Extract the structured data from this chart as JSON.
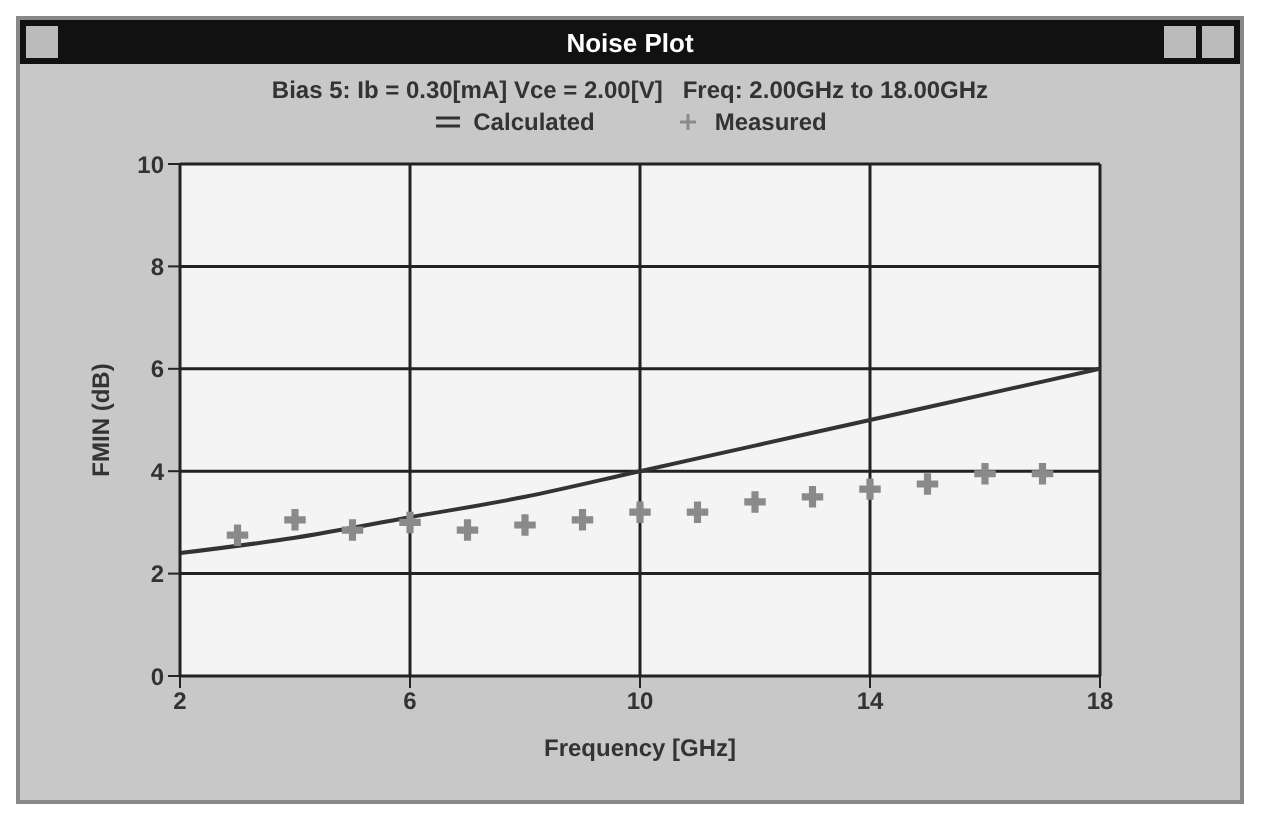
{
  "chart_data": {
    "type": "line",
    "title": "Noise Plot",
    "subtitle": "Bias 5: Ib = 0.30[mA] Vce = 2.00[V]   Freq: 2.00GHz to 18.00GHz",
    "xlabel": "Frequency [GHz]",
    "ylabel": "FMIN (dB)",
    "xlim": [
      2,
      18
    ],
    "xticks": [
      2,
      6,
      10,
      14,
      18
    ],
    "ylim": [
      0,
      10
    ],
    "yticks": [
      0,
      2,
      4,
      6,
      8,
      10
    ],
    "grid": true,
    "legend": "top",
    "series": [
      {
        "name": "Calculated",
        "marker": "none",
        "color": "#333333",
        "x": [
          2,
          4,
          6,
          8,
          10,
          12,
          14,
          16,
          18
        ],
        "values": [
          2.4,
          2.7,
          3.1,
          3.5,
          4.0,
          4.5,
          5.0,
          5.5,
          6.0
        ]
      },
      {
        "name": "Measured",
        "type": "scatter",
        "marker": "cross",
        "color": "#8a8a8a",
        "x": [
          3,
          4,
          5,
          6,
          7,
          8,
          9,
          10,
          11,
          12,
          13,
          14,
          15,
          16,
          17
        ],
        "values": [
          2.75,
          3.05,
          2.85,
          3.0,
          2.85,
          2.95,
          3.05,
          3.2,
          3.2,
          3.4,
          3.5,
          3.65,
          3.75,
          3.95,
          3.95
        ]
      }
    ]
  }
}
